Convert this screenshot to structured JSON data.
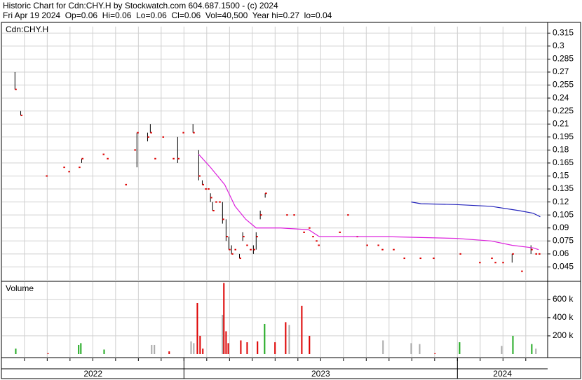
{
  "chart_data": [
    {
      "type": "ohlc",
      "title": "Historic Chart for Cdn:CHY.H by Stockwatch.com 604.687.1500 - (c) 2024",
      "subtitle": "Fri Apr 19 2024  Op=0.06  Hi=0.06  Lo=0.06  Cl=0.06  Vol=40,500  Year hi=0.27  lo=0.04",
      "label": "Cdn:CHY.H",
      "x": [
        2022.382,
        2022.403,
        2022.495,
        2022.559,
        2022.577,
        2022.615,
        2022.626,
        2022.703,
        2022.718,
        2022.785,
        2022.818,
        2022.828,
        2022.867,
        2022.877,
        2022.892,
        2022.921,
        2022.959,
        2022.977,
        2022.995,
        2023.033,
        2023.054,
        2023.067,
        2023.077,
        2023.087,
        2023.097,
        2023.105,
        2023.115,
        2023.128,
        2023.141,
        2023.154,
        2023.164,
        2023.174,
        2023.185,
        2023.203,
        2023.215,
        2023.228,
        2023.241,
        2023.254,
        2023.264,
        2023.279,
        2023.297,
        2023.374,
        2023.4,
        2023.436,
        2023.456,
        2023.469,
        2023.482,
        2023.49,
        2023.567,
        2023.597,
        2023.631,
        2023.667,
        2023.708,
        2023.723,
        2023.764,
        2023.803,
        2023.862,
        2023.91,
        2024.008,
        2024.079,
        2024.123,
        2024.136,
        2024.164,
        2024.2,
        2024.233,
        2024.269,
        2024.285,
        2024.297
      ],
      "high": [
        0.27,
        0.225,
        0.15,
        0.16,
        0.155,
        0.16,
        0.17,
        0.175,
        0.17,
        0.14,
        0.18,
        0.2,
        0.2,
        0.21,
        0.17,
        0.195,
        0.17,
        0.195,
        0.2,
        0.21,
        0.18,
        0.145,
        0.135,
        0.135,
        0.13,
        0.12,
        0.12,
        0.12,
        0.12,
        0.1,
        0.08,
        0.07,
        0.065,
        0.06,
        0.085,
        0.07,
        0.065,
        0.07,
        0.085,
        0.11,
        0.13,
        0.105,
        0.105,
        0.085,
        0.09,
        0.08,
        0.075,
        0.07,
        0.085,
        0.105,
        0.08,
        0.07,
        0.07,
        0.065,
        0.065,
        0.055,
        0.055,
        0.055,
        0.06,
        0.05,
        0.055,
        0.05,
        0.05,
        0.06,
        0.04,
        0.07,
        0.06,
        0.06
      ],
      "low": [
        0.25,
        0.22,
        0.15,
        0.16,
        0.155,
        0.16,
        0.165,
        0.175,
        0.17,
        0.14,
        0.18,
        0.16,
        0.19,
        0.2,
        0.17,
        0.195,
        0.17,
        0.165,
        0.2,
        0.2,
        0.145,
        0.14,
        0.135,
        0.135,
        0.12,
        0.11,
        0.12,
        0.12,
        0.095,
        0.075,
        0.065,
        0.06,
        0.065,
        0.055,
        0.075,
        0.07,
        0.065,
        0.06,
        0.065,
        0.1,
        0.125,
        0.105,
        0.105,
        0.085,
        0.09,
        0.08,
        0.075,
        0.07,
        0.085,
        0.105,
        0.08,
        0.07,
        0.07,
        0.065,
        0.065,
        0.055,
        0.055,
        0.055,
        0.06,
        0.05,
        0.055,
        0.05,
        0.05,
        0.05,
        0.04,
        0.06,
        0.06,
        0.06
      ],
      "close": [
        0.25,
        0.22,
        0.15,
        0.16,
        0.155,
        0.16,
        0.17,
        0.175,
        0.17,
        0.14,
        0.18,
        0.2,
        0.195,
        0.2,
        0.17,
        0.195,
        0.17,
        0.17,
        0.2,
        0.2,
        0.15,
        0.14,
        0.135,
        0.135,
        0.125,
        0.11,
        0.12,
        0.12,
        0.1,
        0.08,
        0.065,
        0.06,
        0.065,
        0.055,
        0.08,
        0.07,
        0.065,
        0.065,
        0.08,
        0.105,
        0.13,
        0.105,
        0.105,
        0.085,
        0.09,
        0.08,
        0.075,
        0.07,
        0.085,
        0.105,
        0.08,
        0.07,
        0.07,
        0.065,
        0.065,
        0.055,
        0.055,
        0.055,
        0.06,
        0.05,
        0.055,
        0.05,
        0.05,
        0.06,
        0.04,
        0.065,
        0.06,
        0.06
      ],
      "bar_color": "#000000",
      "close_color": "#dd0000",
      "series": [
        {
          "color": "#dd22dd",
          "x": [
            2023.054,
            2023.097,
            2023.149,
            2023.187,
            2023.226,
            2023.264,
            2023.354,
            2023.456,
            2023.495,
            2023.61,
            2023.738,
            2023.867,
            2023.995,
            2024.123,
            2024.2,
            2024.277,
            2024.297
          ],
          "values": [
            0.175,
            0.16,
            0.14,
            0.115,
            0.1,
            0.09,
            0.09,
            0.088,
            0.08,
            0.08,
            0.08,
            0.079,
            0.078,
            0.075,
            0.07,
            0.067,
            0.065
          ]
        },
        {
          "color": "#2222bb",
          "x": [
            2023.831,
            2023.867,
            2023.995,
            2024.123,
            2024.226,
            2024.277,
            2024.303
          ],
          "values": [
            0.12,
            0.118,
            0.117,
            0.115,
            0.11,
            0.107,
            0.103
          ]
        }
      ],
      "xlim": [
        2022.335,
        2024.33
      ],
      "xticks": [
        {
          "value": 2022,
          "label": "2022"
        },
        {
          "value": 2023,
          "label": "2023"
        },
        {
          "value": 2024,
          "label": "2024"
        }
      ],
      "ylim": [
        0.03,
        0.3225
      ],
      "yticks": [
        0.045,
        0.06,
        0.075,
        0.09,
        0.105,
        0.12,
        0.135,
        0.15,
        0.165,
        0.18,
        0.195,
        0.21,
        0.225,
        0.24,
        0.255,
        0.27,
        0.285,
        0.3,
        0.315
      ],
      "grid": true
    },
    {
      "type": "bar",
      "label": "Volume",
      "x": [
        2022.385,
        2022.503,
        2022.615,
        2022.623,
        2022.708,
        2022.882,
        2022.892,
        2022.946,
        2023.026,
        2023.036,
        2023.049,
        2023.059,
        2023.069,
        2023.141,
        2023.146,
        2023.154,
        2023.162,
        2023.208,
        2023.231,
        2023.269,
        2023.295,
        2023.333,
        2023.372,
        2023.385,
        2023.431,
        2023.459,
        2023.728,
        2023.831,
        2023.862,
        2023.918,
        2024.008,
        2024.162,
        2024.203,
        2024.272,
        2024.287
      ],
      "values": [
        60000,
        10000,
        100000,
        120000,
        50000,
        100000,
        100000,
        30000,
        140000,
        120000,
        560000,
        200000,
        60000,
        430000,
        780000,
        250000,
        120000,
        150000,
        130000,
        140000,
        330000,
        130000,
        350000,
        320000,
        530000,
        200000,
        150000,
        120000,
        110000,
        10000,
        130000,
        90000,
        200000,
        110000,
        60000
      ],
      "colors": [
        "#22aa22",
        "#dd0000",
        "#22aa22",
        "#22aa22",
        "#22aa22",
        "#aaaaaa",
        "#aaaaaa",
        "#dd0000",
        "#aaaaaa",
        "#aaaaaa",
        "#dd0000",
        "#dd0000",
        "#dd0000",
        "#aaaaaa",
        "#dd0000",
        "#dd0000",
        "#dd0000",
        "#dd0000",
        "#dd0000",
        "#dd0000",
        "#22aa22",
        "#dd0000",
        "#dd0000",
        "#aaaaaa",
        "#dd0000",
        "#dd0000",
        "#aaaaaa",
        "#aaaaaa",
        "#aaaaaa",
        "#dd0000",
        "#22aa22",
        "#aaaaaa",
        "#22aa22",
        "#22aa22",
        "#aaaaaa"
      ],
      "ylim": [
        0,
        790000
      ],
      "yticks": [
        {
          "value": 200000,
          "label": "200 k"
        },
        {
          "value": 400000,
          "label": "400 k"
        },
        {
          "value": 600000,
          "label": "600 k"
        }
      ],
      "grid": true
    }
  ]
}
